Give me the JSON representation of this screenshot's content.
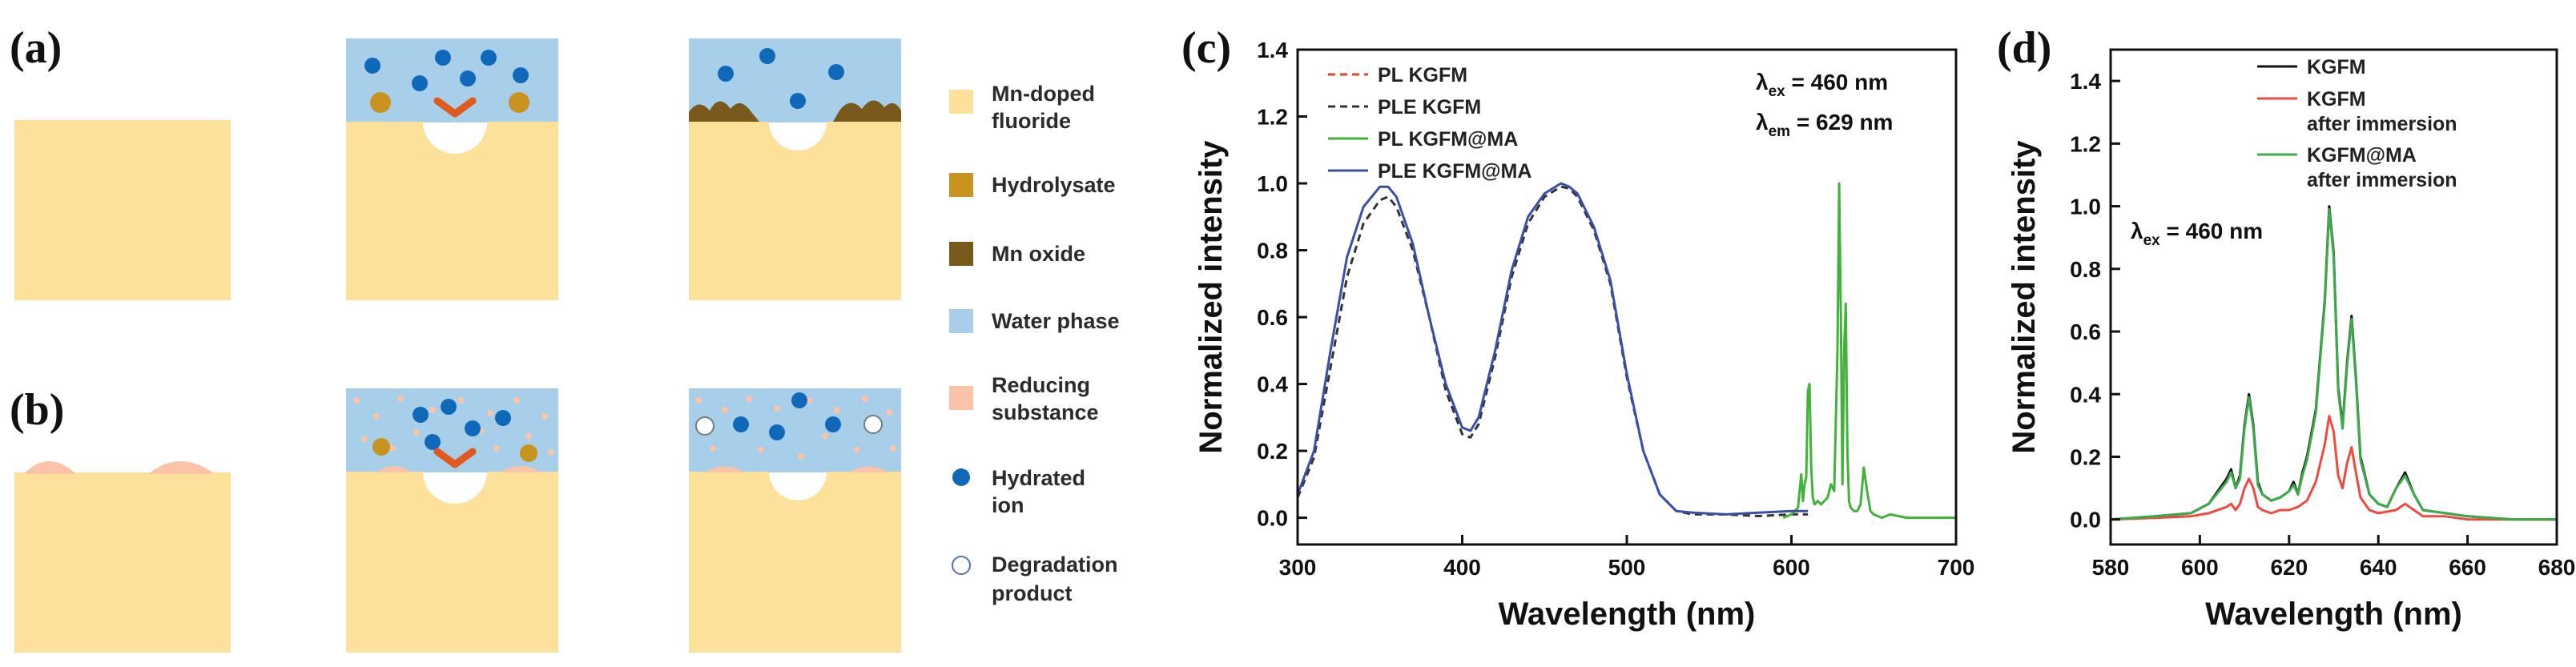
{
  "colors": {
    "fluoride": "#fde19a",
    "hydrolysate": "#c8931f",
    "mn_oxide": "#7a5a1c",
    "water": "#a7cfe9",
    "reducing": "#fbc4a8",
    "hydrated_ion": "#0f68b8",
    "arrow": "#e05a1e"
  },
  "schematic": {
    "labels": {
      "a": "(a)",
      "b": "(b)"
    },
    "legend": [
      {
        "key": "fluoride",
        "line1": "Mn-doped",
        "line2": "fluoride",
        "icon": "fluoride-swatch"
      },
      {
        "key": "hydrolysate",
        "line1": "Hydrolysate",
        "line2": "",
        "icon": "hydrolysate-swatch"
      },
      {
        "key": "mn_oxide",
        "line1": "Mn oxide",
        "line2": "",
        "icon": "mn-oxide-swatch"
      },
      {
        "key": "water",
        "line1": "Water phase",
        "line2": "",
        "icon": "water-phase-swatch"
      },
      {
        "key": "reducing",
        "line1": "Reducing",
        "line2": "substance",
        "icon": "reducing-substance-swatch"
      },
      {
        "key": "ion",
        "line1": "Hydrated",
        "line2": "ion",
        "icon": "hydrated-ion-icon"
      },
      {
        "key": "product",
        "line1": "Degradation",
        "line2": "product",
        "icon": "degradation-product-icon"
      }
    ]
  },
  "chart_data": [
    {
      "panel": "(c)",
      "type": "line",
      "xlabel": "Wavelength (nm)",
      "ylabel": "Normalized intensity",
      "xlim": [
        300,
        700
      ],
      "ylim": [
        -0.08,
        1.4
      ],
      "xticks": [
        300,
        400,
        500,
        600,
        700
      ],
      "yticks": [
        0.0,
        0.2,
        0.4,
        0.6,
        0.8,
        1.0,
        1.2,
        1.4
      ],
      "annotations": [
        {
          "main": "λ",
          "sub": "ex",
          "rest": " = 460 nm"
        },
        {
          "main": "λ",
          "sub": "em",
          "rest": " = 629 nm"
        }
      ],
      "series": [
        {
          "name": "PL KGFM",
          "color": "#e8412c",
          "dash": "9,6",
          "x": [],
          "y": []
        },
        {
          "name": "PLE KGFM",
          "color": "#333333",
          "dash": "9,6",
          "x": [
            300,
            310,
            320,
            330,
            340,
            350,
            355,
            360,
            370,
            380,
            390,
            400,
            405,
            410,
            420,
            430,
            440,
            450,
            460,
            465,
            470,
            480,
            490,
            500,
            510,
            520,
            530,
            540,
            560,
            580,
            600,
            610
          ],
          "y": [
            0.06,
            0.18,
            0.45,
            0.72,
            0.88,
            0.95,
            0.96,
            0.93,
            0.8,
            0.6,
            0.38,
            0.25,
            0.24,
            0.28,
            0.48,
            0.72,
            0.88,
            0.96,
            0.99,
            0.985,
            0.96,
            0.86,
            0.7,
            0.42,
            0.2,
            0.07,
            0.02,
            0.01,
            0.01,
            0.005,
            0.01,
            0.01
          ]
        },
        {
          "name": "PL KGFM@MA",
          "color": "#41b33a",
          "dash": "",
          "x": [
            595,
            600,
            604,
            606,
            607,
            608,
            609,
            610,
            611,
            612,
            613,
            614,
            616,
            618,
            620,
            622,
            624,
            626,
            628,
            629,
            630,
            631,
            632,
            633,
            634,
            635,
            636,
            638,
            640,
            642,
            644,
            646,
            648,
            650,
            655,
            660,
            670,
            680,
            690,
            700
          ],
          "y": [
            0.0,
            0.01,
            0.03,
            0.13,
            0.05,
            0.1,
            0.12,
            0.38,
            0.4,
            0.15,
            0.06,
            0.04,
            0.05,
            0.04,
            0.05,
            0.06,
            0.1,
            0.08,
            0.5,
            1.0,
            0.6,
            0.1,
            0.5,
            0.64,
            0.2,
            0.05,
            0.03,
            0.02,
            0.02,
            0.04,
            0.15,
            0.08,
            0.02,
            0.01,
            0.0,
            0.01,
            0.0,
            0.0,
            0.0,
            0.0
          ]
        },
        {
          "name": "PLE KGFM@MA",
          "color": "#3a4fa8",
          "dash": "",
          "x": [
            300,
            310,
            320,
            330,
            340,
            350,
            355,
            360,
            370,
            380,
            390,
            400,
            405,
            410,
            420,
            430,
            440,
            450,
            460,
            465,
            470,
            480,
            490,
            500,
            510,
            520,
            530,
            540,
            560,
            580,
            600,
            610
          ],
          "y": [
            0.07,
            0.2,
            0.5,
            0.78,
            0.93,
            0.99,
            0.99,
            0.96,
            0.82,
            0.6,
            0.4,
            0.27,
            0.26,
            0.3,
            0.5,
            0.74,
            0.9,
            0.97,
            1.0,
            0.99,
            0.97,
            0.87,
            0.71,
            0.43,
            0.2,
            0.07,
            0.02,
            0.015,
            0.01,
            0.015,
            0.02,
            0.02
          ]
        }
      ]
    },
    {
      "panel": "(d)",
      "type": "line",
      "xlabel": "Wavelength (nm)",
      "ylabel": "Normalized intensity",
      "xlim": [
        580,
        680
      ],
      "ylim": [
        -0.08,
        1.5
      ],
      "xticks": [
        580,
        600,
        620,
        640,
        660,
        680
      ],
      "yticks": [
        0.0,
        0.2,
        0.4,
        0.6,
        0.8,
        1.0,
        1.2,
        1.4
      ],
      "annotations": [
        {
          "main": "λ",
          "sub": "ex",
          "rest": " = 460 nm"
        }
      ],
      "series": [
        {
          "name": "KGFM",
          "name2": "",
          "color": "#111111",
          "x": [
            580,
            590,
            598,
            602,
            606,
            607,
            608,
            609,
            610,
            611,
            612,
            613,
            614,
            616,
            618,
            620,
            621,
            622,
            623,
            624,
            626,
            628,
            629,
            630,
            631,
            632,
            633,
            634,
            635,
            636,
            638,
            640,
            642,
            644,
            646,
            648,
            650,
            655,
            660,
            670,
            680
          ],
          "y": [
            0.0,
            0.01,
            0.02,
            0.05,
            0.13,
            0.16,
            0.1,
            0.14,
            0.3,
            0.4,
            0.3,
            0.12,
            0.08,
            0.06,
            0.07,
            0.09,
            0.12,
            0.08,
            0.15,
            0.2,
            0.35,
            0.7,
            1.0,
            0.85,
            0.42,
            0.3,
            0.5,
            0.65,
            0.45,
            0.2,
            0.08,
            0.05,
            0.04,
            0.1,
            0.15,
            0.08,
            0.03,
            0.02,
            0.01,
            0.0,
            0.0
          ]
        },
        {
          "name": "KGFM",
          "name2": "after immersion",
          "color": "#f04a40",
          "x": [
            580,
            590,
            598,
            602,
            606,
            607,
            608,
            609,
            610,
            611,
            612,
            613,
            614,
            616,
            618,
            620,
            622,
            624,
            626,
            628,
            629,
            630,
            631,
            632,
            633,
            634,
            635,
            636,
            638,
            640,
            644,
            646,
            648,
            650,
            655,
            660,
            670,
            680
          ],
          "y": [
            0.0,
            0.005,
            0.01,
            0.02,
            0.04,
            0.05,
            0.03,
            0.05,
            0.1,
            0.13,
            0.1,
            0.04,
            0.03,
            0.02,
            0.03,
            0.03,
            0.04,
            0.06,
            0.12,
            0.24,
            0.33,
            0.28,
            0.14,
            0.1,
            0.18,
            0.23,
            0.15,
            0.07,
            0.03,
            0.02,
            0.03,
            0.05,
            0.03,
            0.01,
            0.01,
            0.0,
            0.0,
            0.0
          ]
        },
        {
          "name": "KGFM@MA",
          "name2": "after immersion",
          "color": "#3cab4a",
          "x": [
            580,
            590,
            598,
            602,
            606,
            607,
            608,
            609,
            610,
            611,
            612,
            613,
            614,
            616,
            618,
            620,
            621,
            622,
            623,
            624,
            626,
            628,
            629,
            630,
            631,
            632,
            633,
            634,
            635,
            636,
            638,
            640,
            642,
            644,
            646,
            648,
            650,
            655,
            660,
            670,
            680
          ],
          "y": [
            0.0,
            0.01,
            0.02,
            0.05,
            0.12,
            0.15,
            0.1,
            0.13,
            0.29,
            0.39,
            0.29,
            0.11,
            0.08,
            0.06,
            0.07,
            0.09,
            0.11,
            0.08,
            0.14,
            0.19,
            0.34,
            0.69,
            0.99,
            0.84,
            0.41,
            0.29,
            0.49,
            0.64,
            0.44,
            0.19,
            0.08,
            0.05,
            0.04,
            0.1,
            0.14,
            0.08,
            0.03,
            0.02,
            0.01,
            0.0,
            0.0
          ]
        }
      ]
    }
  ],
  "chart_labels": {
    "c": "(c)",
    "d": "(d)"
  }
}
